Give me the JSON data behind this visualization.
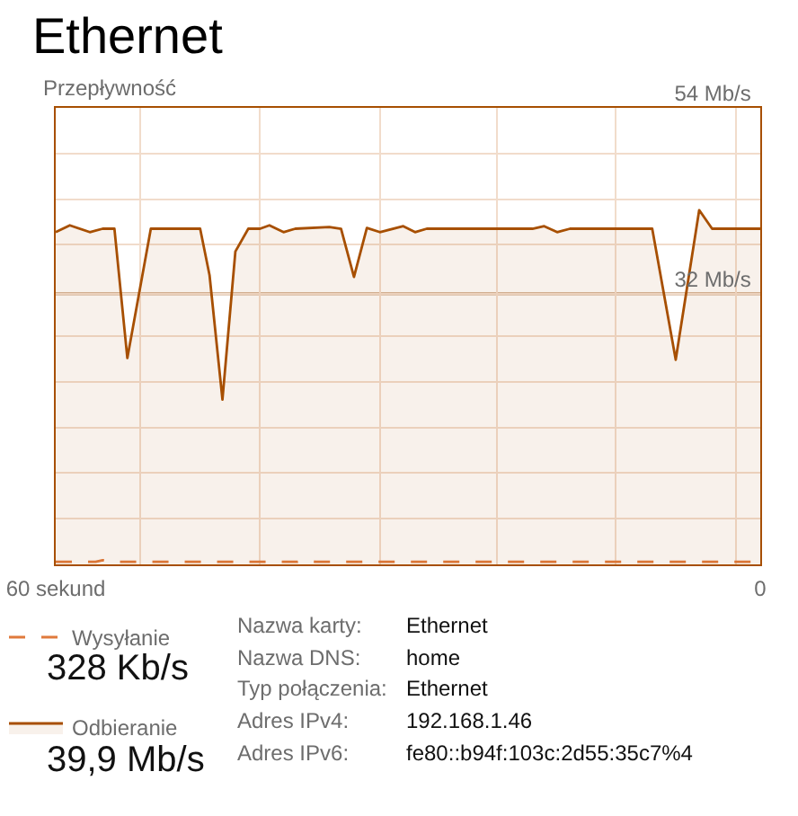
{
  "chart_data": {
    "type": "area",
    "title": "Ethernet",
    "ylabel": "Przepływność",
    "series": [
      {
        "name": "Wysyłanie",
        "type": "line",
        "line_style": "dashed",
        "color": "#e07a3c",
        "x": [
          60,
          56.6,
          56.0,
          55.4,
          39.4,
          38.6,
          37.9,
          0
        ],
        "values": [
          0.3,
          0.3,
          0.5,
          0.3,
          0.3,
          0.5,
          0.3,
          0.3
        ]
      },
      {
        "name": "Odbieranie",
        "color": "#a74f01",
        "x": [
          60,
          58.8,
          57.1,
          56.0,
          55.0,
          53.9,
          51.9,
          47.7,
          46.9,
          45.8,
          44.7,
          43.6,
          42.6,
          41.8,
          40.6,
          39.6,
          36.7,
          35.7,
          34.6,
          33.5,
          32.4,
          30.4,
          29.4,
          28.4,
          19.4,
          18.4,
          17.3,
          16.2,
          9.2,
          7.2,
          5.2,
          4.1,
          0
        ],
        "values": [
          39.3,
          40.1,
          39.3,
          39.7,
          39.7,
          24.4,
          39.7,
          39.7,
          34.2,
          19.5,
          37.0,
          39.7,
          39.7,
          40.1,
          39.3,
          39.7,
          39.9,
          39.7,
          34.0,
          39.8,
          39.3,
          40.0,
          39.3,
          39.7,
          39.7,
          40.0,
          39.3,
          39.7,
          39.7,
          24.2,
          41.9,
          39.7,
          39.7
        ]
      }
    ],
    "xlim": [
      60,
      0
    ],
    "xticks": [
      {
        "value": 60,
        "label": "60 sekund"
      },
      {
        "value": 52.8,
        "label": null
      },
      {
        "value": 42.6,
        "label": null
      },
      {
        "value": 32.4,
        "label": null
      },
      {
        "value": 22.4,
        "label": null
      },
      {
        "value": 12.3,
        "label": null
      },
      {
        "value": 2.1,
        "label": null
      },
      {
        "value": 0,
        "label": "0"
      }
    ],
    "ylim": [
      0,
      54
    ],
    "yticks": [
      {
        "value": 5.4,
        "label": null
      },
      {
        "value": 10.8,
        "label": null
      },
      {
        "value": 16.2,
        "label": null
      },
      {
        "value": 21.6,
        "label": null
      },
      {
        "value": 27,
        "label": null
      },
      {
        "value": 32,
        "label": "32 Mb/s"
      },
      {
        "value": 37.8,
        "label": null
      },
      {
        "value": 43.2,
        "label": null
      },
      {
        "value": 48.6,
        "label": null
      },
      {
        "value": 54,
        "label": "54 Mb/s"
      }
    ],
    "ref_lines": [
      {
        "axis": "y",
        "value": 32,
        "color": "#c8a07c"
      }
    ],
    "grid": true,
    "legend": "bottom left",
    "line_style": "solid",
    "marker": "none",
    "annotations": [
      "328 Kb/s",
      "39,9 Mb/s",
      "Nazwa karty:",
      "Ethernet",
      "Nazwa DNS:",
      "home",
      "Typ połączenia:",
      "Ethernet",
      "Adres IPv4:",
      "192.168.1.46",
      "Adres IPv6:",
      "fe80::b94f:103c:2d55:35c7%4"
    ]
  }
}
